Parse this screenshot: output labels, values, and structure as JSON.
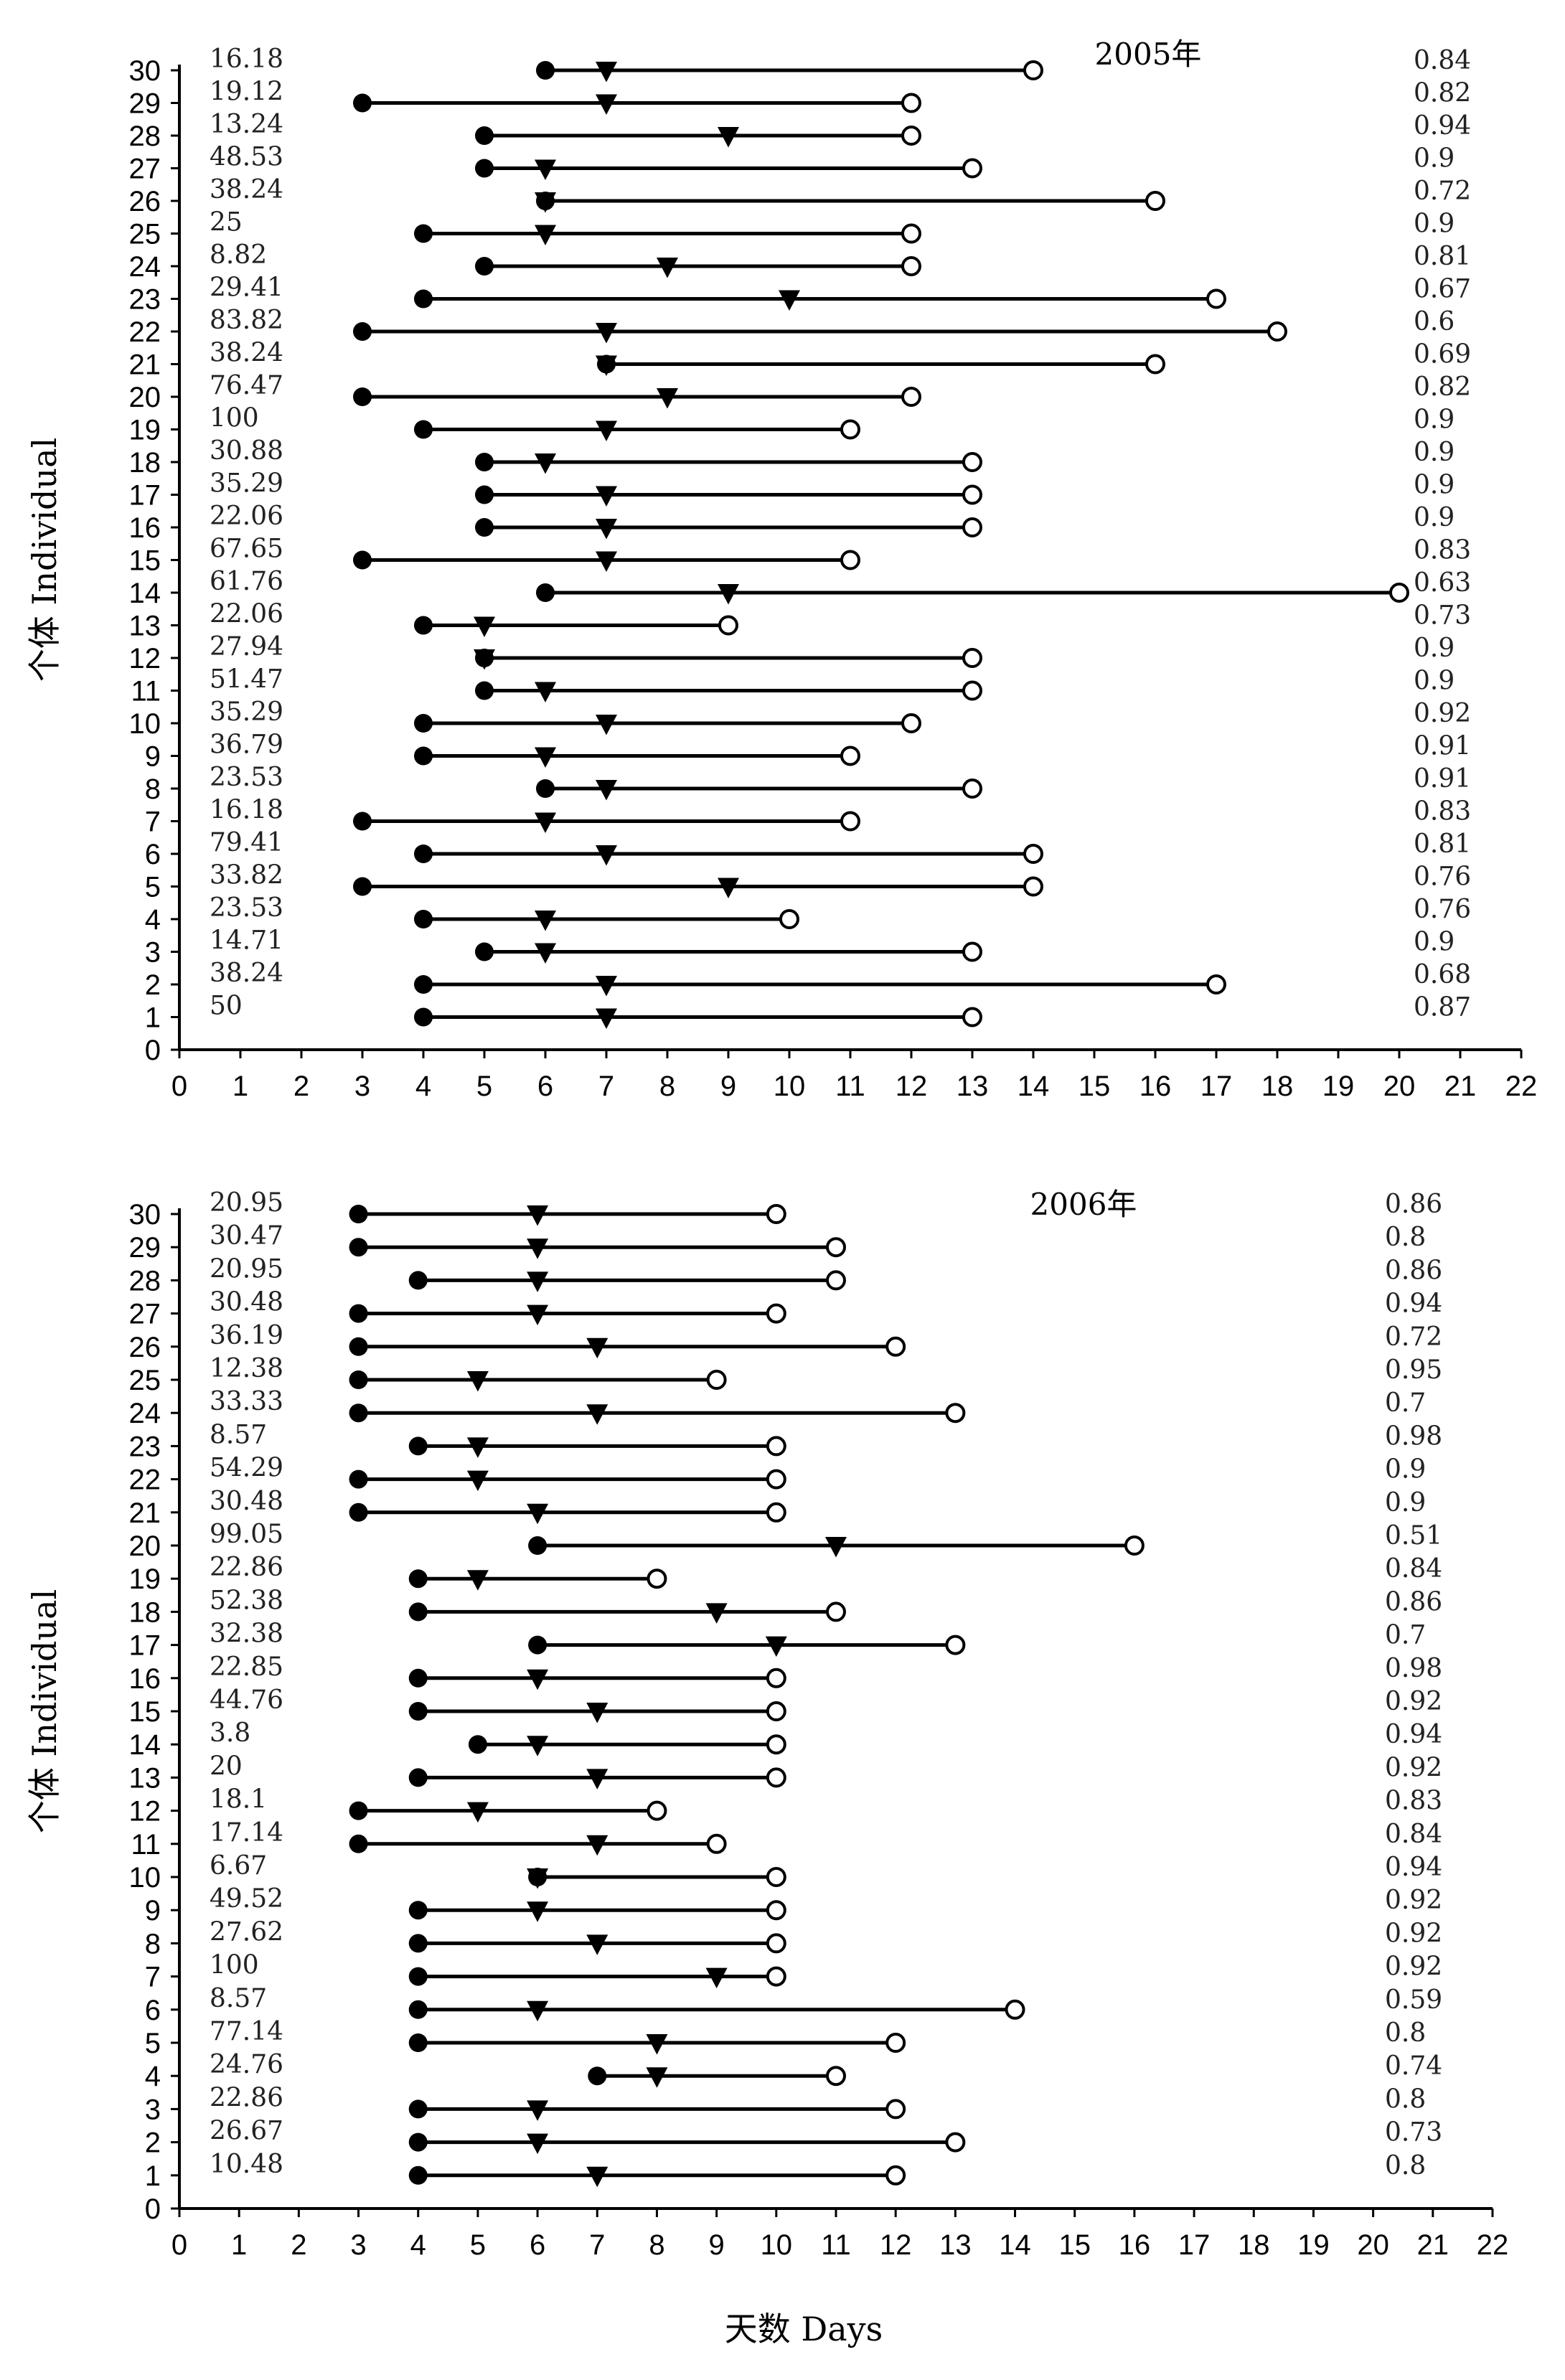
{
  "xlabel": "天数 Days",
  "chart_data": [
    {
      "type": "timeline",
      "title": "2005年",
      "ylabel": "个体 Individual",
      "xlabel": "",
      "xlim": [
        0,
        22
      ],
      "ylim": [
        0,
        30
      ],
      "x_ticks": [
        0,
        1,
        2,
        3,
        4,
        5,
        6,
        7,
        8,
        9,
        10,
        11,
        12,
        13,
        14,
        15,
        16,
        17,
        18,
        19,
        20,
        21,
        22
      ],
      "y_ticks": [
        0,
        1,
        2,
        3,
        4,
        5,
        6,
        7,
        8,
        9,
        10,
        11,
        12,
        13,
        14,
        15,
        16,
        17,
        18,
        19,
        20,
        21,
        22,
        23,
        24,
        25,
        26,
        27,
        28,
        29,
        30
      ],
      "markers": [
        "filled-circle",
        "filled-triangle-down",
        "open-circle"
      ],
      "rows": [
        {
          "individual": 30,
          "start": 6,
          "mid": 7,
          "end": 14,
          "left_value": "16.18",
          "right_value": "0.84"
        },
        {
          "individual": 29,
          "start": 3,
          "mid": 7,
          "end": 12,
          "left_value": "19.12",
          "right_value": "0.82"
        },
        {
          "individual": 28,
          "start": 5,
          "mid": 9,
          "end": 12,
          "left_value": "13.24",
          "right_value": "0.94"
        },
        {
          "individual": 27,
          "start": 5,
          "mid": 6,
          "end": 13,
          "left_value": "48.53",
          "right_value": "0.9"
        },
        {
          "individual": 26,
          "start": 6,
          "mid": 6,
          "end": 16,
          "left_value": "38.24",
          "right_value": "0.72"
        },
        {
          "individual": 25,
          "start": 4,
          "mid": 6,
          "end": 12,
          "left_value": "25",
          "right_value": "0.9"
        },
        {
          "individual": 24,
          "start": 5,
          "mid": 8,
          "end": 12,
          "left_value": "8.82",
          "right_value": "0.81"
        },
        {
          "individual": 23,
          "start": 4,
          "mid": 10,
          "end": 17,
          "left_value": "29.41",
          "right_value": "0.67"
        },
        {
          "individual": 22,
          "start": 3,
          "mid": 7,
          "end": 18,
          "left_value": "83.82",
          "right_value": "0.6"
        },
        {
          "individual": 21,
          "start": 7,
          "mid": 7,
          "end": 16,
          "left_value": "38.24",
          "right_value": "0.69"
        },
        {
          "individual": 20,
          "start": 3,
          "mid": 8,
          "end": 12,
          "left_value": "76.47",
          "right_value": "0.82"
        },
        {
          "individual": 19,
          "start": 4,
          "mid": 7,
          "end": 11,
          "left_value": "100",
          "right_value": "0.9"
        },
        {
          "individual": 18,
          "start": 5,
          "mid": 6,
          "end": 13,
          "left_value": "30.88",
          "right_value": "0.9"
        },
        {
          "individual": 17,
          "start": 5,
          "mid": 7,
          "end": 13,
          "left_value": "35.29",
          "right_value": "0.9"
        },
        {
          "individual": 16,
          "start": 5,
          "mid": 7,
          "end": 13,
          "left_value": "22.06",
          "right_value": "0.9"
        },
        {
          "individual": 15,
          "start": 3,
          "mid": 7,
          "end": 11,
          "left_value": "67.65",
          "right_value": "0.83"
        },
        {
          "individual": 14,
          "start": 6,
          "mid": 9,
          "end": 20,
          "left_value": "61.76",
          "right_value": "0.63"
        },
        {
          "individual": 13,
          "start": 4,
          "mid": 5,
          "end": 9,
          "left_value": "22.06",
          "right_value": "0.73"
        },
        {
          "individual": 12,
          "start": 5,
          "mid": 5,
          "end": 13,
          "left_value": "27.94",
          "right_value": "0.9"
        },
        {
          "individual": 11,
          "start": 5,
          "mid": 6,
          "end": 13,
          "left_value": "51.47",
          "right_value": "0.9"
        },
        {
          "individual": 10,
          "start": 4,
          "mid": 7,
          "end": 12,
          "left_value": "35.29",
          "right_value": "0.92"
        },
        {
          "individual": 9,
          "start": 4,
          "mid": 6,
          "end": 11,
          "left_value": "36.79",
          "right_value": "0.91"
        },
        {
          "individual": 8,
          "start": 6,
          "mid": 7,
          "end": 13,
          "left_value": "23.53",
          "right_value": "0.91"
        },
        {
          "individual": 7,
          "start": 3,
          "mid": 6,
          "end": 11,
          "left_value": "16.18",
          "right_value": "0.83"
        },
        {
          "individual": 6,
          "start": 4,
          "mid": 7,
          "end": 14,
          "left_value": "79.41",
          "right_value": "0.81"
        },
        {
          "individual": 5,
          "start": 3,
          "mid": 9,
          "end": 14,
          "left_value": "33.82",
          "right_value": "0.76"
        },
        {
          "individual": 4,
          "start": 4,
          "mid": 6,
          "end": 10,
          "left_value": "23.53",
          "right_value": "0.76"
        },
        {
          "individual": 3,
          "start": 5,
          "mid": 6,
          "end": 13,
          "left_value": "14.71",
          "right_value": "0.9"
        },
        {
          "individual": 2,
          "start": 4,
          "mid": 7,
          "end": 17,
          "left_value": "38.24",
          "right_value": "0.68"
        },
        {
          "individual": 1,
          "start": 4,
          "mid": 7,
          "end": 13,
          "left_value": "50",
          "right_value": "0.87"
        }
      ]
    },
    {
      "type": "timeline",
      "title": "2006年",
      "ylabel": "个体 Individual",
      "xlabel": "天数 Days",
      "xlim": [
        0,
        22
      ],
      "ylim": [
        0,
        30
      ],
      "x_ticks": [
        0,
        1,
        2,
        3,
        4,
        5,
        6,
        7,
        8,
        9,
        10,
        11,
        12,
        13,
        14,
        15,
        16,
        17,
        18,
        19,
        20,
        21,
        22
      ],
      "y_ticks": [
        0,
        1,
        2,
        3,
        4,
        5,
        6,
        7,
        8,
        9,
        10,
        11,
        12,
        13,
        14,
        15,
        16,
        17,
        18,
        19,
        20,
        21,
        22,
        23,
        24,
        25,
        26,
        27,
        28,
        29,
        30
      ],
      "markers": [
        "filled-circle",
        "filled-triangle-down",
        "open-circle"
      ],
      "rows": [
        {
          "individual": 30,
          "start": 3,
          "mid": 6,
          "end": 10,
          "left_value": "20.95",
          "right_value": "0.86"
        },
        {
          "individual": 29,
          "start": 3,
          "mid": 6,
          "end": 11,
          "left_value": "30.47",
          "right_value": "0.8"
        },
        {
          "individual": 28,
          "start": 4,
          "mid": 6,
          "end": 11,
          "left_value": "20.95",
          "right_value": "0.86"
        },
        {
          "individual": 27,
          "start": 3,
          "mid": 6,
          "end": 10,
          "left_value": "30.48",
          "right_value": "0.94"
        },
        {
          "individual": 26,
          "start": 3,
          "mid": 7,
          "end": 12,
          "left_value": "36.19",
          "right_value": "0.72"
        },
        {
          "individual": 25,
          "start": 3,
          "mid": 5,
          "end": 9,
          "left_value": "12.38",
          "right_value": "0.95"
        },
        {
          "individual": 24,
          "start": 3,
          "mid": 7,
          "end": 13,
          "left_value": "33.33",
          "right_value": "0.7"
        },
        {
          "individual": 23,
          "start": 4,
          "mid": 5,
          "end": 10,
          "left_value": "8.57",
          "right_value": "0.98"
        },
        {
          "individual": 22,
          "start": 3,
          "mid": 5,
          "end": 10,
          "left_value": "54.29",
          "right_value": "0.9"
        },
        {
          "individual": 21,
          "start": 3,
          "mid": 6,
          "end": 10,
          "left_value": "30.48",
          "right_value": "0.9"
        },
        {
          "individual": 20,
          "start": 6,
          "mid": 11,
          "end": 16,
          "left_value": "99.05",
          "right_value": "0.51"
        },
        {
          "individual": 19,
          "start": 4,
          "mid": 5,
          "end": 8,
          "left_value": "22.86",
          "right_value": "0.84"
        },
        {
          "individual": 18,
          "start": 4,
          "mid": 9,
          "end": 11,
          "left_value": "52.38",
          "right_value": "0.86"
        },
        {
          "individual": 17,
          "start": 6,
          "mid": 10,
          "end": 13,
          "left_value": "32.38",
          "right_value": "0.7"
        },
        {
          "individual": 16,
          "start": 4,
          "mid": 6,
          "end": 10,
          "left_value": "22.85",
          "right_value": "0.98"
        },
        {
          "individual": 15,
          "start": 4,
          "mid": 7,
          "end": 10,
          "left_value": "44.76",
          "right_value": "0.92"
        },
        {
          "individual": 14,
          "start": 5,
          "mid": 6,
          "end": 10,
          "left_value": "3.8",
          "right_value": "0.94"
        },
        {
          "individual": 13,
          "start": 4,
          "mid": 7,
          "end": 10,
          "left_value": "20",
          "right_value": "0.92"
        },
        {
          "individual": 12,
          "start": 3,
          "mid": 5,
          "end": 8,
          "left_value": "18.1",
          "right_value": "0.83"
        },
        {
          "individual": 11,
          "start": 3,
          "mid": 7,
          "end": 9,
          "left_value": "17.14",
          "right_value": "0.84"
        },
        {
          "individual": 10,
          "start": 6,
          "mid": 6,
          "end": 10,
          "left_value": "6.67",
          "right_value": "0.94"
        },
        {
          "individual": 9,
          "start": 4,
          "mid": 6,
          "end": 10,
          "left_value": "49.52",
          "right_value": "0.92"
        },
        {
          "individual": 8,
          "start": 4,
          "mid": 7,
          "end": 10,
          "left_value": "27.62",
          "right_value": "0.92"
        },
        {
          "individual": 7,
          "start": 4,
          "mid": 9,
          "end": 10,
          "left_value": "100",
          "right_value": "0.92"
        },
        {
          "individual": 6,
          "start": 4,
          "mid": 6,
          "end": 14,
          "left_value": "8.57",
          "right_value": "0.59"
        },
        {
          "individual": 5,
          "start": 4,
          "mid": 8,
          "end": 12,
          "left_value": "77.14",
          "right_value": "0.8"
        },
        {
          "individual": 4,
          "start": 7,
          "mid": 8,
          "end": 11,
          "left_value": "24.76",
          "right_value": "0.74"
        },
        {
          "individual": 3,
          "start": 4,
          "mid": 6,
          "end": 12,
          "left_value": "22.86",
          "right_value": "0.8"
        },
        {
          "individual": 2,
          "start": 4,
          "mid": 6,
          "end": 13,
          "left_value": "26.67",
          "right_value": "0.73"
        },
        {
          "individual": 1,
          "start": 4,
          "mid": 7,
          "end": 12,
          "left_value": "10.48",
          "right_value": "0.8"
        }
      ]
    }
  ]
}
